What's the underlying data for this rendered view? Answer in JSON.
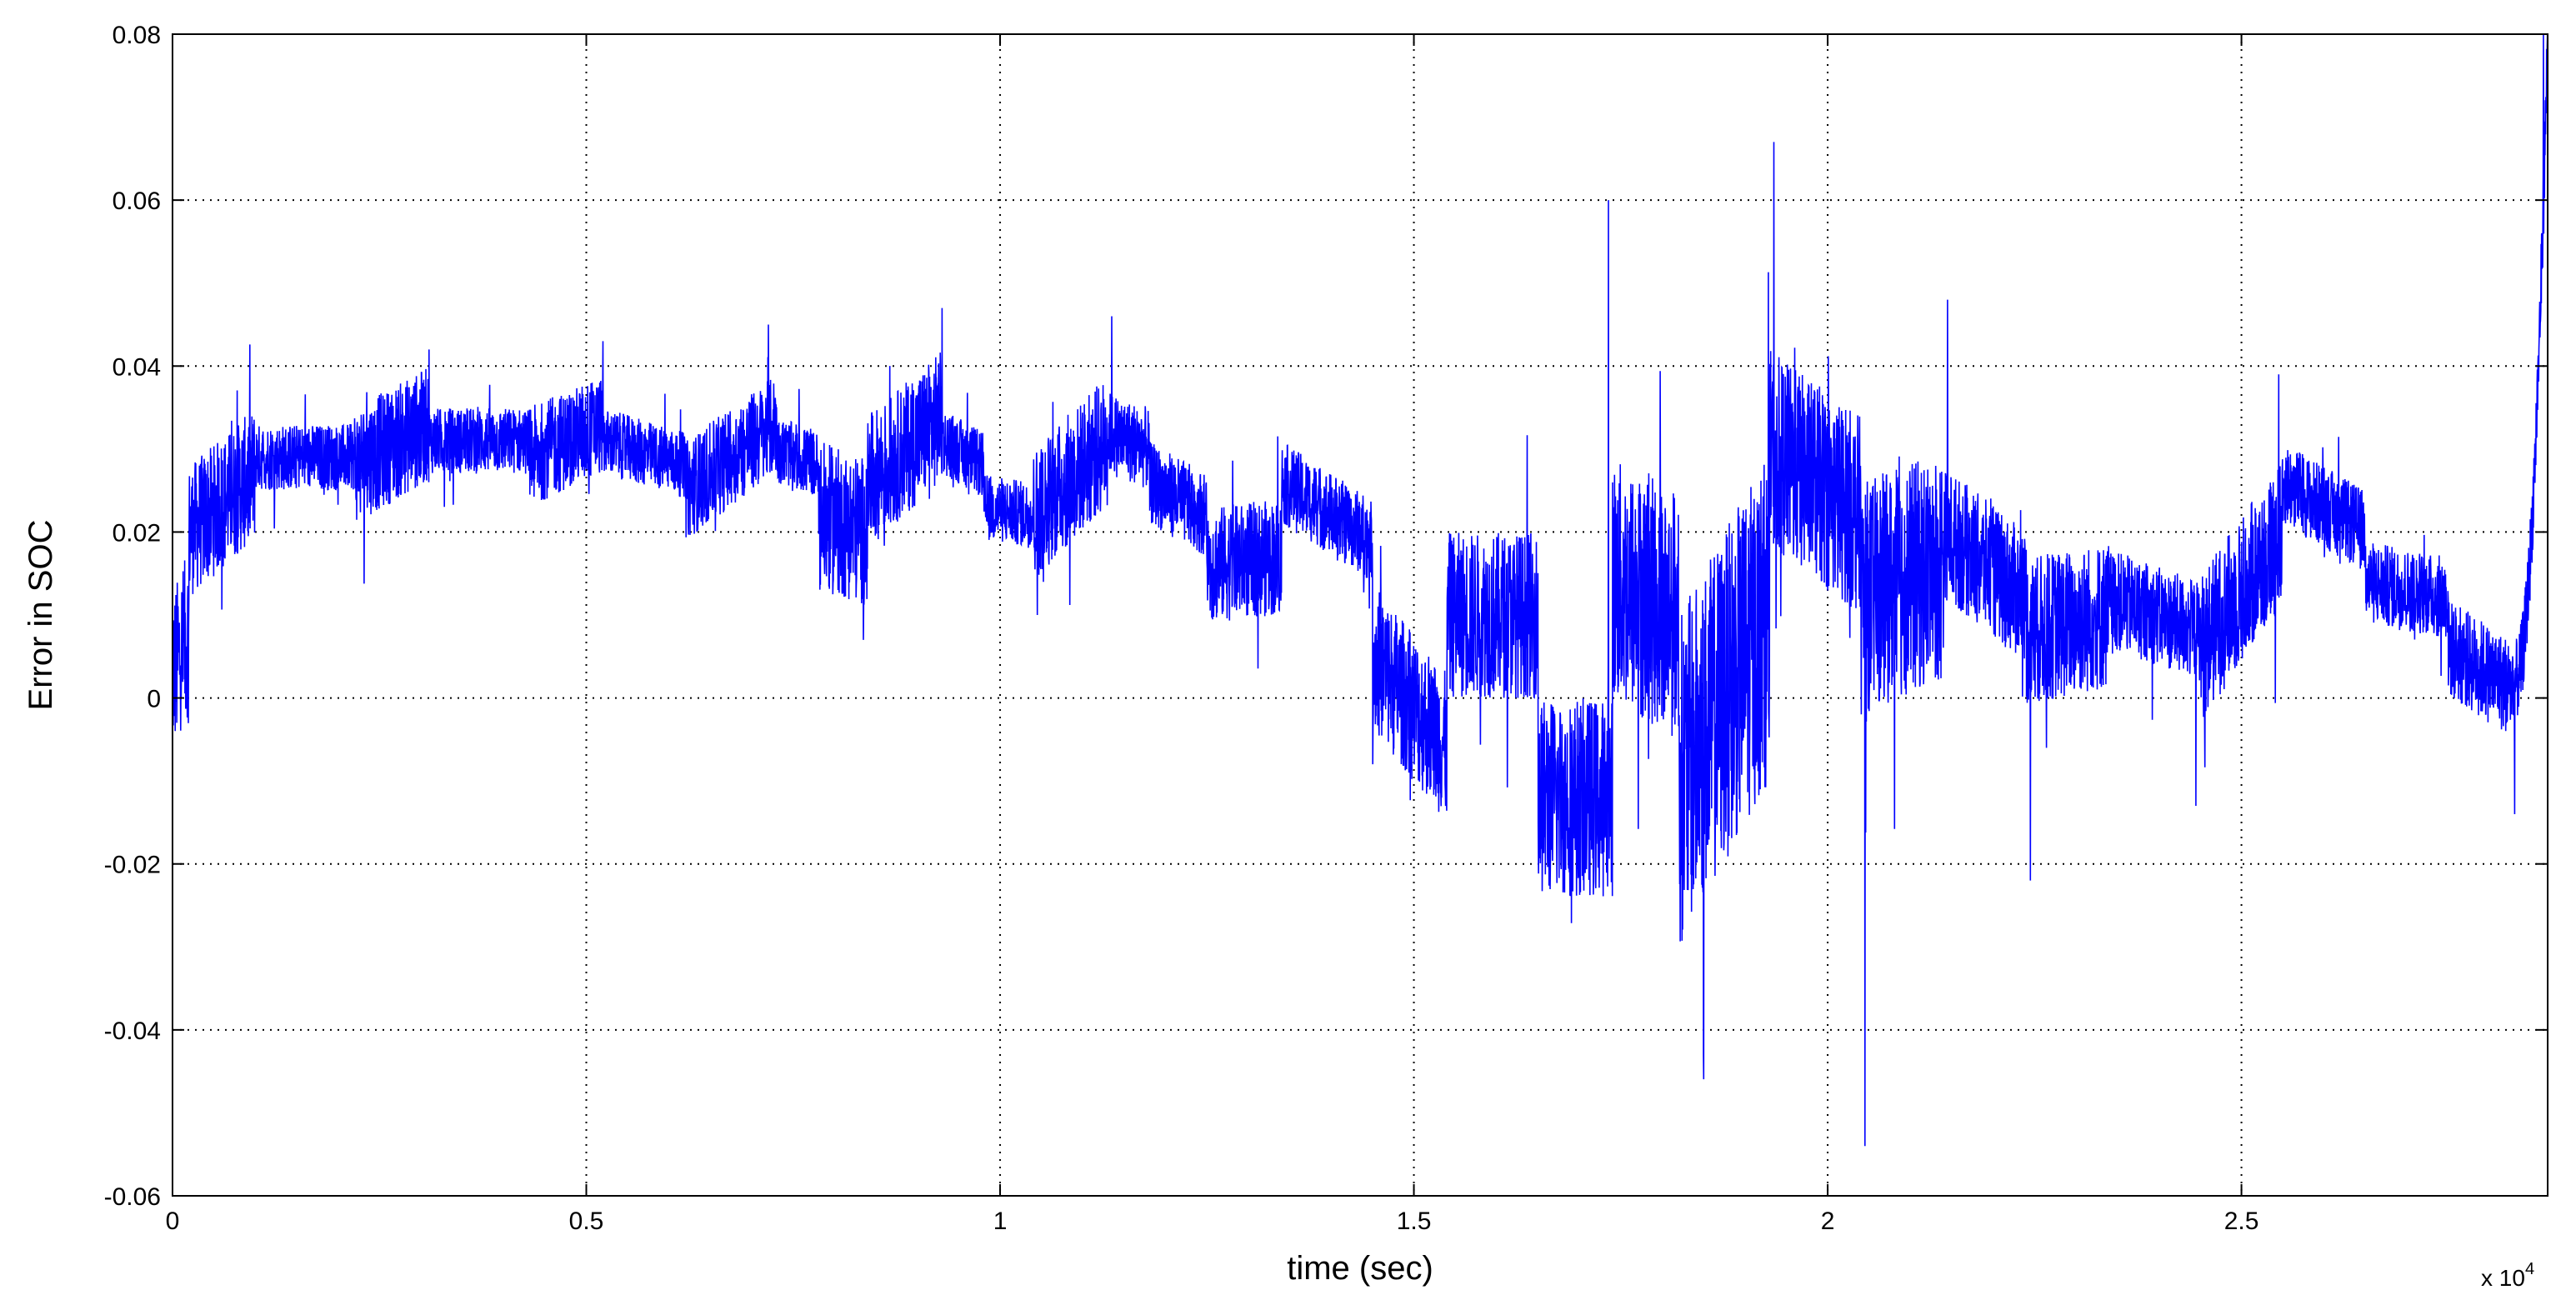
{
  "chart_data": {
    "type": "line",
    "title": "",
    "xlabel": "time (sec)",
    "ylabel": "Error in SOC",
    "x_exponent_label": "x 10",
    "x_exponent": "4",
    "xlim": [
      0,
      2.87
    ],
    "ylim": [
      -0.06,
      0.08
    ],
    "grid": true,
    "x_ticks": [
      "0",
      "0.5",
      "1",
      "1.5",
      "2",
      "2.5"
    ],
    "y_ticks": [
      "-0.06",
      "-0.04",
      "-0.02",
      "0",
      "0.02",
      "0.04",
      "0.06",
      "0.08"
    ],
    "line_color": "#0000ff",
    "series": [
      {
        "x_units": "x 10^4 sec",
        "segments": [
          {
            "t0": 0.0,
            "t1": 0.02,
            "center": 0.003,
            "amp": 0.01,
            "c1": 0.008
          },
          {
            "t0": 0.02,
            "t1": 0.1,
            "center": 0.02,
            "amp": 0.008,
            "c1": 0.027
          },
          {
            "t0": 0.1,
            "t1": 0.22,
            "center": 0.029,
            "amp": 0.004,
            "c1": 0.029
          },
          {
            "t0": 0.22,
            "t1": 0.31,
            "center": 0.028,
            "amp": 0.007,
            "c1": 0.033
          },
          {
            "t0": 0.31,
            "t1": 0.43,
            "center": 0.031,
            "amp": 0.004,
            "c1": 0.031
          },
          {
            "t0": 0.43,
            "t1": 0.52,
            "center": 0.029,
            "amp": 0.006,
            "c1": 0.033
          },
          {
            "t0": 0.52,
            "t1": 0.62,
            "center": 0.031,
            "amp": 0.004,
            "c1": 0.028
          },
          {
            "t0": 0.62,
            "t1": 0.73,
            "center": 0.025,
            "amp": 0.006,
            "c1": 0.033
          },
          {
            "t0": 0.73,
            "t1": 0.78,
            "center": 0.03,
            "amp": 0.004,
            "c1": 0.028
          },
          {
            "t0": 0.78,
            "t1": 0.84,
            "center": 0.022,
            "amp": 0.009,
            "c1": 0.02
          },
          {
            "t0": 0.84,
            "t1": 0.93,
            "center": 0.026,
            "amp": 0.008,
            "c1": 0.034
          },
          {
            "t0": 0.93,
            "t1": 0.98,
            "center": 0.031,
            "amp": 0.004,
            "c1": 0.028
          },
          {
            "t0": 0.98,
            "t1": 1.04,
            "center": 0.023,
            "amp": 0.004,
            "c1": 0.022
          },
          {
            "t0": 1.04,
            "t1": 1.13,
            "center": 0.022,
            "amp": 0.008,
            "c1": 0.031
          },
          {
            "t0": 1.13,
            "t1": 1.18,
            "center": 0.032,
            "amp": 0.005,
            "c1": 0.03
          },
          {
            "t0": 1.18,
            "t1": 1.25,
            "center": 0.026,
            "amp": 0.005,
            "c1": 0.022
          },
          {
            "t0": 1.25,
            "t1": 1.34,
            "center": 0.016,
            "amp": 0.007,
            "c1": 0.017
          },
          {
            "t0": 1.34,
            "t1": 1.45,
            "center": 0.026,
            "amp": 0.005,
            "c1": 0.019
          },
          {
            "t0": 1.45,
            "t1": 1.54,
            "center": 0.005,
            "amp": 0.009,
            "c1": -0.006
          },
          {
            "t0": 1.54,
            "t1": 1.65,
            "center": 0.01,
            "amp": 0.01,
            "c1": 0.01
          },
          {
            "t0": 1.65,
            "t1": 1.74,
            "center": -0.012,
            "amp": 0.012,
            "c1": -0.012
          },
          {
            "t0": 1.74,
            "t1": 1.82,
            "center": 0.014,
            "amp": 0.015,
            "c1": 0.01
          },
          {
            "t0": 1.82,
            "t1": 1.93,
            "center": -0.01,
            "amp": 0.02,
            "c1": 0.01
          },
          {
            "t0": 1.93,
            "t1": 2.04,
            "center": 0.03,
            "amp": 0.012,
            "c1": 0.022
          },
          {
            "t0": 2.04,
            "t1": 2.14,
            "center": 0.012,
            "amp": 0.014,
            "c1": 0.016
          },
          {
            "t0": 2.14,
            "t1": 2.24,
            "center": 0.02,
            "amp": 0.008,
            "c1": 0.012
          },
          {
            "t0": 2.24,
            "t1": 2.34,
            "center": 0.008,
            "amp": 0.009,
            "c1": 0.01
          },
          {
            "t0": 2.34,
            "t1": 2.45,
            "center": 0.012,
            "amp": 0.006,
            "c1": 0.008
          },
          {
            "t0": 2.45,
            "t1": 2.55,
            "center": 0.006,
            "amp": 0.009,
            "c1": 0.02
          },
          {
            "t0": 2.55,
            "t1": 2.65,
            "center": 0.026,
            "amp": 0.005,
            "c1": 0.02
          },
          {
            "t0": 2.65,
            "t1": 2.75,
            "center": 0.014,
            "amp": 0.005,
            "c1": 0.012
          },
          {
            "t0": 2.75,
            "t1": 2.83,
            "center": 0.006,
            "amp": 0.006,
            "c1": 0.001
          },
          {
            "t0": 2.83,
            "t1": 2.87,
            "center": 0.002,
            "amp": 0.005,
            "c1": 0.08
          }
        ],
        "spikes": [
          {
            "t": 0.005,
            "y": -0.003
          },
          {
            "t": 0.31,
            "y": 0.042
          },
          {
            "t": 0.52,
            "y": 0.043
          },
          {
            "t": 0.72,
            "y": 0.045
          },
          {
            "t": 0.835,
            "y": 0.007
          },
          {
            "t": 0.93,
            "y": 0.047
          },
          {
            "t": 1.045,
            "y": 0.01
          },
          {
            "t": 1.135,
            "y": 0.046
          },
          {
            "t": 1.735,
            "y": 0.06
          },
          {
            "t": 1.85,
            "y": -0.043
          },
          {
            "t": 1.935,
            "y": 0.067
          },
          {
            "t": 2.045,
            "y": -0.054
          },
          {
            "t": 2.145,
            "y": 0.048
          },
          {
            "t": 2.245,
            "y": -0.022
          },
          {
            "t": 2.445,
            "y": -0.013
          },
          {
            "t": 2.545,
            "y": 0.039
          },
          {
            "t": 2.83,
            "y": -0.014
          },
          {
            "t": 2.865,
            "y": 0.08
          }
        ]
      }
    ]
  }
}
